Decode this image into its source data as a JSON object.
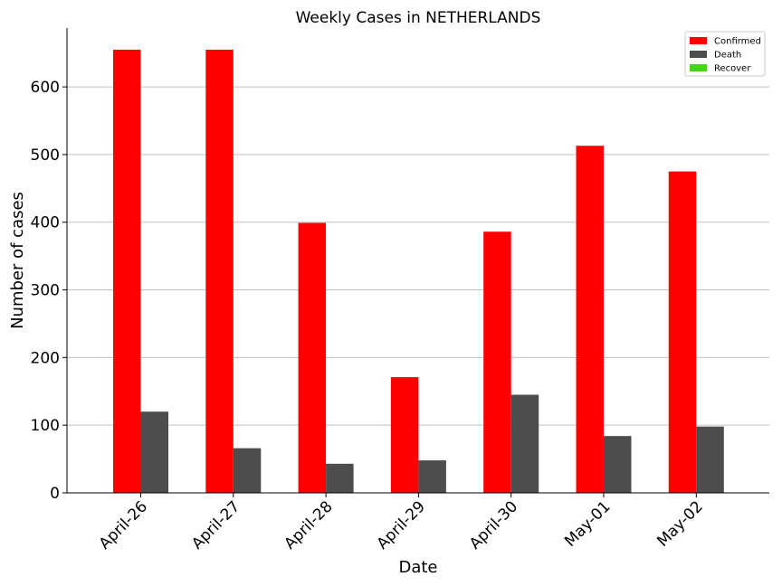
{
  "chart_data": {
    "type": "bar",
    "title": "Weekly Cases in NETHERLANDS",
    "xlabel": "Date",
    "ylabel": "Number of cases",
    "categories": [
      "April-26",
      "April-27",
      "April-28",
      "April-29",
      "April-30",
      "May-01",
      "May-02"
    ],
    "series": [
      {
        "name": "Confirmed",
        "color": "#ff0000",
        "values": [
          655,
          655,
          399,
          171,
          386,
          513,
          475
        ]
      },
      {
        "name": "Death",
        "color": "#4d4d4d",
        "values": [
          120,
          66,
          43,
          48,
          145,
          84,
          98
        ]
      },
      {
        "name": "Recover",
        "color": "#44d611",
        "values": [
          0,
          0,
          0,
          0,
          0,
          0,
          0
        ]
      }
    ],
    "ylim": [
      0,
      687
    ],
    "yticks": [
      0,
      100,
      200,
      300,
      400,
      500,
      600
    ],
    "grid": "horizontal",
    "legend_position": "top-right"
  }
}
